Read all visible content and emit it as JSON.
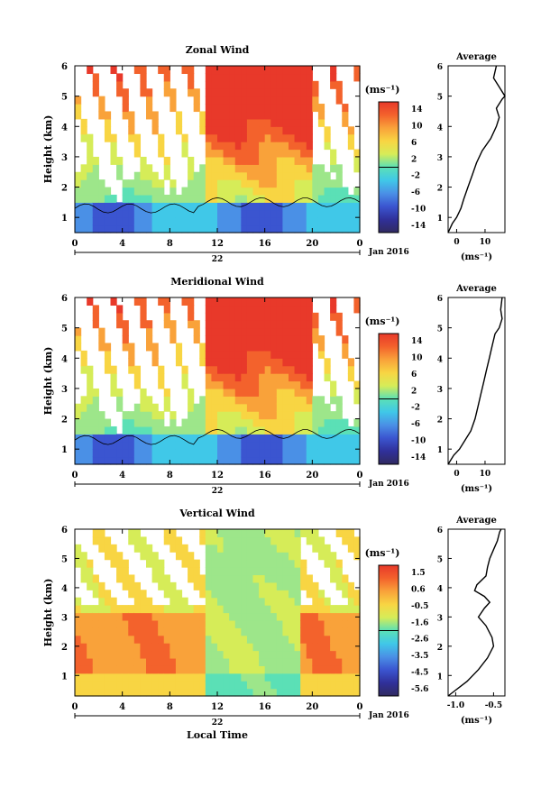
{
  "chart_data": [
    {
      "type": "heatmap",
      "title": "Zonal Wind",
      "ylabel": "Height (km)",
      "xticks": [
        "0",
        "4",
        "8",
        "12",
        "16",
        "20",
        "0"
      ],
      "yticks": [
        "1",
        "2",
        "3",
        "4",
        "5",
        "6"
      ],
      "xlim": [
        0,
        24
      ],
      "ylim": [
        0.5,
        6
      ],
      "day_label": "22",
      "date_label": "Jan 2016",
      "colorbar": {
        "unit": "(ms⁻¹)",
        "ticks": [
          "14",
          "10",
          "6",
          "2",
          "-2",
          "-6",
          "-10",
          "-14"
        ],
        "range": [
          -16,
          16
        ]
      },
      "profile": {
        "title": "Average",
        "xticks": [
          "0",
          "10"
        ],
        "xunit": "(ms⁻¹)",
        "xlim": [
          -3,
          17
        ],
        "heights": [
          0.5,
          0.8,
          1.0,
          1.3,
          1.6,
          2.0,
          2.4,
          2.8,
          3.2,
          3.6,
          4.0,
          4.3,
          4.6,
          4.9,
          5.0,
          5.3,
          5.6,
          6.0
        ],
        "values": [
          -3,
          -1.5,
          0,
          1.5,
          2.5,
          4,
          5.5,
          7,
          9,
          12,
          14,
          15,
          14,
          16,
          17,
          15,
          13,
          14
        ]
      }
    },
    {
      "type": "heatmap",
      "title": "Meridional Wind",
      "ylabel": "Height (km)",
      "xticks": [
        "0",
        "4",
        "8",
        "12",
        "16",
        "20",
        "0"
      ],
      "yticks": [
        "1",
        "2",
        "3",
        "4",
        "5",
        "6"
      ],
      "xlim": [
        0,
        24
      ],
      "ylim": [
        0.5,
        6
      ],
      "day_label": "22",
      "date_label": "Jan 2016",
      "colorbar": {
        "unit": "(ms⁻¹)",
        "ticks": [
          "14",
          "10",
          "6",
          "2",
          "-2",
          "-6",
          "-10",
          "-14"
        ],
        "range": [
          -16,
          16
        ]
      },
      "profile": {
        "title": "Average",
        "xticks": [
          "0",
          "10"
        ],
        "xunit": "(ms⁻¹)",
        "xlim": [
          -3,
          17
        ],
        "heights": [
          0.5,
          0.8,
          1.0,
          1.3,
          1.6,
          2.0,
          2.4,
          2.8,
          3.2,
          3.6,
          4.0,
          4.4,
          4.8,
          5.0,
          5.3,
          5.6,
          6.0
        ],
        "values": [
          -3,
          -1,
          1,
          3,
          5,
          6.5,
          7.5,
          8.5,
          9.5,
          10.5,
          11.5,
          12.5,
          13.5,
          15,
          16,
          15.5,
          16
        ]
      }
    },
    {
      "type": "heatmap",
      "title": "Vertical Wind",
      "ylabel": "Height (km)",
      "xlabel": "Local Time",
      "xticks": [
        "0",
        "4",
        "8",
        "12",
        "16",
        "20",
        "0"
      ],
      "yticks": [
        "1",
        "2",
        "3",
        "4",
        "5",
        "6"
      ],
      "xlim": [
        0,
        24
      ],
      "ylim": [
        0.3,
        6
      ],
      "day_label": "22",
      "date_label": "Jan 2016",
      "colorbar": {
        "unit": "(ms⁻¹)",
        "ticks": [
          "1.5",
          "0.6",
          "-0.5",
          "-1.6",
          "-2.6",
          "-3.5",
          "-4.5",
          "-5.6"
        ],
        "range": [
          -6,
          2
        ]
      },
      "profile": {
        "title": "Average",
        "xticks": [
          "-1.0",
          "-0.5"
        ],
        "xunit": "(ms⁻¹)",
        "xlim": [
          -1.1,
          -0.35
        ],
        "heights": [
          0.3,
          0.5,
          0.8,
          1.2,
          1.6,
          2.0,
          2.3,
          2.7,
          3.0,
          3.3,
          3.5,
          3.7,
          3.9,
          4.1,
          4.4,
          4.7,
          5.0,
          5.3,
          5.6,
          5.9,
          6.0
        ],
        "values": [
          -1.1,
          -1.0,
          -0.85,
          -0.7,
          -0.58,
          -0.5,
          -0.52,
          -0.6,
          -0.7,
          -0.62,
          -0.55,
          -0.62,
          -0.75,
          -0.72,
          -0.6,
          -0.58,
          -0.55,
          -0.5,
          -0.45,
          -0.42,
          -0.4
        ]
      }
    }
  ]
}
